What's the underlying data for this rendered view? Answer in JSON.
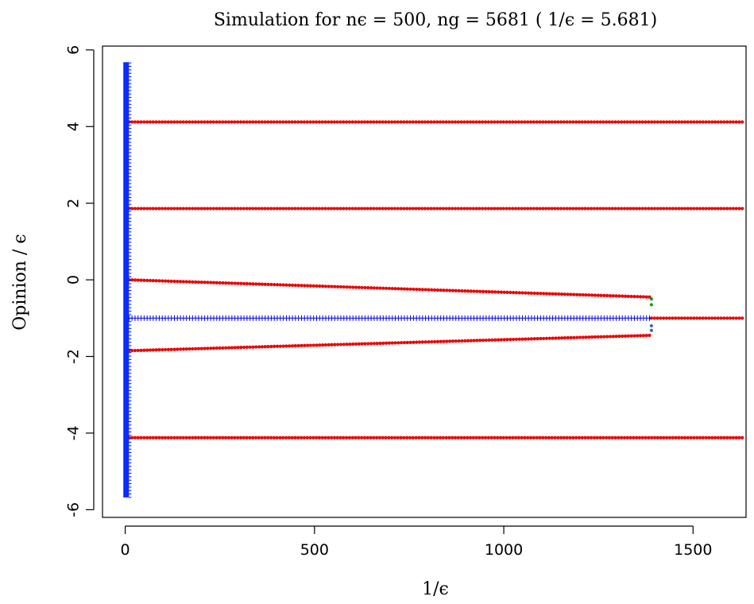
{
  "chart_data": {
    "type": "scatter",
    "title": "Simulation for nϵ = 500, ng = 5681 ( 1/ϵ = 5.681)",
    "xlabel": "1/ϵ",
    "ylabel": "Opinion / ϵ",
    "xlim": [
      -60,
      1640
    ],
    "ylim": [
      -6.2,
      6.1
    ],
    "xticks": [
      0,
      500,
      1000,
      1500
    ],
    "yticks": [
      -6,
      -4,
      -2,
      0,
      2,
      4,
      6
    ],
    "grid": false,
    "colors": {
      "red": "#ee0000",
      "blue": "#0000ee",
      "blue_band": "#0a2cff",
      "green": "#1a9a1a",
      "slate": "#4466aa"
    },
    "series": [
      {
        "color": "red",
        "marker": "dot",
        "x_start": 10,
        "x_end": 1630,
        "y_start": 4.12,
        "y_end": 4.12
      },
      {
        "color": "red",
        "marker": "dot",
        "x_start": 10,
        "x_end": 1630,
        "y_start": 1.86,
        "y_end": 1.86
      },
      {
        "color": "red",
        "marker": "dot",
        "x_start": 10,
        "x_end": 1385,
        "y_start": 0.0,
        "y_end": -0.45
      },
      {
        "color": "red",
        "marker": "dot",
        "x_start": 10,
        "x_end": 1385,
        "y_start": -1.85,
        "y_end": -1.45
      },
      {
        "color": "red",
        "marker": "dot",
        "x_start": 1390,
        "x_end": 1630,
        "y_start": -1.0,
        "y_end": -1.0
      },
      {
        "color": "red",
        "marker": "dot",
        "x_start": 10,
        "x_end": 1630,
        "y_start": -4.12,
        "y_end": -4.12
      },
      {
        "color": "blue",
        "marker": "plus",
        "x_start": 10,
        "x_end": 1385,
        "y_start": -1.0,
        "y_end": -1.0
      }
    ],
    "transition_points": [
      {
        "x": 1390,
        "y": -0.5,
        "color": "green"
      },
      {
        "x": 1390,
        "y": -0.65,
        "color": "green"
      },
      {
        "x": 1390,
        "y": -1.2,
        "color": "slate"
      },
      {
        "x": 1390,
        "y": -1.32,
        "color": "slate"
      }
    ],
    "blue_band": {
      "x_from": -5,
      "x_to": 10,
      "y_min": -5.68,
      "y_max": 5.68
    }
  }
}
